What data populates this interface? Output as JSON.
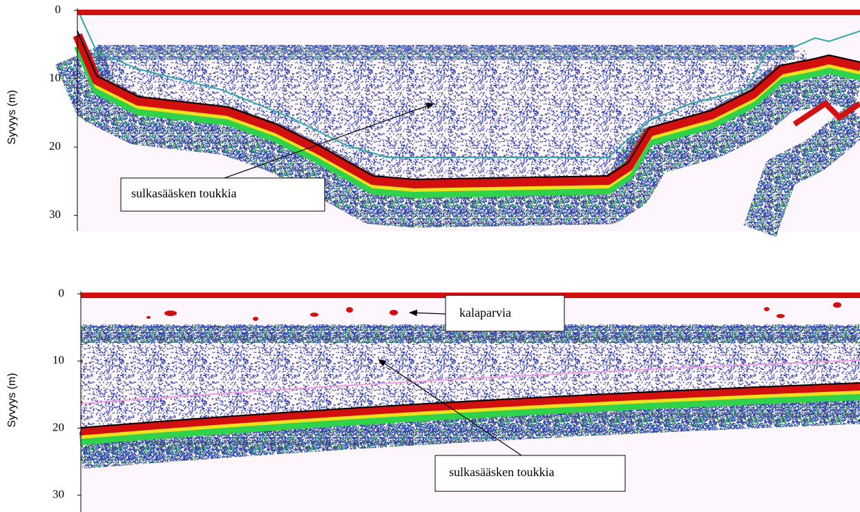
{
  "chart_data": [
    {
      "type": "echogram",
      "y_label": "Syvyys (m)",
      "ylim": [
        -0.3,
        32.3
      ],
      "y_inverted": true,
      "yticks": [
        0,
        10,
        20,
        30
      ],
      "annotations": [
        "sulkasääsken toukkia"
      ]
    },
    {
      "type": "echogram",
      "y_label": "Syvyys (m)",
      "ylim": [
        -0.4,
        32.5
      ],
      "y_inverted": true,
      "yticks": [
        0,
        10,
        20,
        30
      ],
      "annotations": [
        "kalaparvia",
        "sulkasääsken toukkia"
      ]
    }
  ]
}
